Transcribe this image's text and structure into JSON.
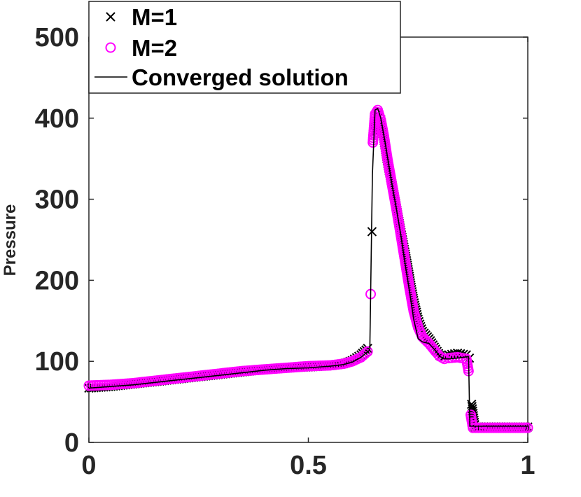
{
  "chart_data": {
    "type": "line",
    "xlabel": "",
    "ylabel": "Pressure",
    "xlim": [
      0,
      1
    ],
    "ylim": [
      0,
      500
    ],
    "xticks": [
      0,
      0.5,
      1
    ],
    "xtick_labels": [
      "0",
      "0.5",
      "1"
    ],
    "yticks": [
      0,
      100,
      200,
      300,
      400,
      500
    ],
    "ytick_labels": [
      "0",
      "100",
      "200",
      "300",
      "400",
      "500"
    ],
    "grid": false,
    "legend_position": "top-left",
    "series": [
      {
        "name": "M=1",
        "marker": "x",
        "color": "#000000",
        "points": [
          [
            0.0,
            67
          ],
          [
            0.05,
            69
          ],
          [
            0.1,
            72
          ],
          [
            0.15,
            75
          ],
          [
            0.2,
            78
          ],
          [
            0.25,
            81
          ],
          [
            0.3,
            84
          ],
          [
            0.35,
            87
          ],
          [
            0.4,
            90
          ],
          [
            0.45,
            92
          ],
          [
            0.5,
            93
          ],
          [
            0.55,
            95
          ],
          [
            0.58,
            97
          ],
          [
            0.6,
            101
          ],
          [
            0.62,
            108
          ],
          [
            0.635,
            116
          ],
          [
            0.645,
            260
          ],
          [
            0.652,
            383
          ],
          [
            0.658,
            405
          ],
          [
            0.665,
            398
          ],
          [
            0.672,
            375
          ],
          [
            0.68,
            347
          ],
          [
            0.69,
            320
          ],
          [
            0.7,
            292
          ],
          [
            0.71,
            262
          ],
          [
            0.72,
            235
          ],
          [
            0.73,
            205
          ],
          [
            0.74,
            175
          ],
          [
            0.75,
            152
          ],
          [
            0.76,
            137
          ],
          [
            0.775,
            128
          ],
          [
            0.79,
            115
          ],
          [
            0.8,
            107
          ],
          [
            0.81,
            106
          ],
          [
            0.82,
            108
          ],
          [
            0.84,
            110
          ],
          [
            0.86,
            108
          ],
          [
            0.867,
            104
          ],
          [
            0.872,
            47
          ],
          [
            0.88,
            19
          ],
          [
            0.9,
            19
          ],
          [
            0.95,
            19
          ],
          [
            1.0,
            19
          ]
        ]
      },
      {
        "name": "M=2",
        "marker": "o",
        "color": "#ff00ff",
        "points": [
          [
            0.0,
            70
          ],
          [
            0.05,
            71
          ],
          [
            0.1,
            73
          ],
          [
            0.15,
            76
          ],
          [
            0.2,
            79
          ],
          [
            0.25,
            82
          ],
          [
            0.3,
            85
          ],
          [
            0.35,
            88
          ],
          [
            0.4,
            90
          ],
          [
            0.45,
            92
          ],
          [
            0.5,
            94
          ],
          [
            0.55,
            95
          ],
          [
            0.58,
            97
          ],
          [
            0.6,
            100
          ],
          [
            0.62,
            105
          ],
          [
            0.635,
            112
          ],
          [
            0.642,
            183
          ],
          [
            0.647,
            370
          ],
          [
            0.652,
            405
          ],
          [
            0.658,
            410
          ],
          [
            0.665,
            398
          ],
          [
            0.672,
            378
          ],
          [
            0.68,
            350
          ],
          [
            0.69,
            320
          ],
          [
            0.7,
            290
          ],
          [
            0.71,
            258
          ],
          [
            0.72,
            225
          ],
          [
            0.73,
            192
          ],
          [
            0.74,
            162
          ],
          [
            0.75,
            142
          ],
          [
            0.76,
            130
          ],
          [
            0.775,
            122
          ],
          [
            0.79,
            112
          ],
          [
            0.8,
            106
          ],
          [
            0.81,
            103
          ],
          [
            0.82,
            104
          ],
          [
            0.84,
            105
          ],
          [
            0.86,
            103
          ],
          [
            0.865,
            88
          ],
          [
            0.87,
            34
          ],
          [
            0.875,
            18
          ],
          [
            0.9,
            18
          ],
          [
            0.95,
            18
          ],
          [
            1.0,
            18
          ]
        ]
      },
      {
        "name": "Converged solution",
        "marker": "none",
        "color": "#000000",
        "points": [
          [
            0.0,
            67
          ],
          [
            0.05,
            69
          ],
          [
            0.1,
            71
          ],
          [
            0.15,
            74
          ],
          [
            0.2,
            77
          ],
          [
            0.25,
            80
          ],
          [
            0.3,
            83
          ],
          [
            0.35,
            86
          ],
          [
            0.4,
            89
          ],
          [
            0.45,
            91
          ],
          [
            0.5,
            92
          ],
          [
            0.55,
            94
          ],
          [
            0.58,
            96
          ],
          [
            0.6,
            99
          ],
          [
            0.62,
            105
          ],
          [
            0.64,
            114
          ],
          [
            0.646,
            330
          ],
          [
            0.652,
            410
          ],
          [
            0.658,
            412
          ],
          [
            0.665,
            400
          ],
          [
            0.675,
            370
          ],
          [
            0.69,
            320
          ],
          [
            0.7,
            290
          ],
          [
            0.71,
            258
          ],
          [
            0.72,
            222
          ],
          [
            0.73,
            188
          ],
          [
            0.74,
            152
          ],
          [
            0.75,
            128
          ],
          [
            0.76,
            124
          ],
          [
            0.775,
            122
          ],
          [
            0.79,
            113
          ],
          [
            0.8,
            106
          ],
          [
            0.81,
            103
          ],
          [
            0.82,
            103
          ],
          [
            0.84,
            104
          ],
          [
            0.865,
            106
          ],
          [
            0.868,
            20
          ],
          [
            0.9,
            20
          ],
          [
            0.95,
            20
          ],
          [
            1.0,
            20
          ]
        ]
      }
    ]
  }
}
